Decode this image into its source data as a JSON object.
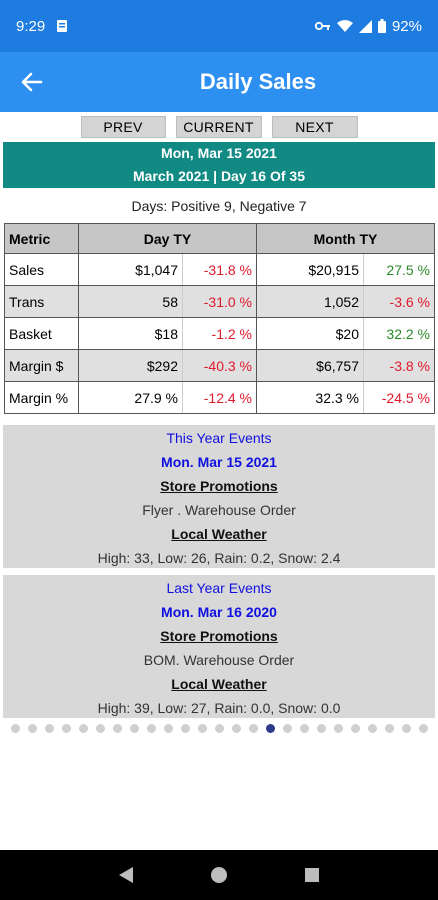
{
  "status": {
    "time": "9:29",
    "battery": "92%"
  },
  "appbar": {
    "title": "Daily Sales"
  },
  "nav_buttons": {
    "prev": "PREV",
    "current": "CURRENT",
    "next": "NEXT"
  },
  "date_header": {
    "date": "Mon, Mar 15 2021",
    "period": "March 2021 | Day 16 Of 35"
  },
  "days_summary": "Days: Positive 9, Negative 7",
  "table": {
    "headers": {
      "metric": "Metric",
      "day": "Day TY",
      "month": "Month TY"
    },
    "rows": [
      {
        "metric": "Sales",
        "day_value": "$1,047",
        "day_pct": "-31.8 %",
        "month_value": "$20,915",
        "month_pct": "27.5 %"
      },
      {
        "metric": "Trans",
        "day_value": "58",
        "day_pct": "-31.0 %",
        "month_value": "1,052",
        "month_pct": "-3.6 %"
      },
      {
        "metric": "Basket",
        "day_value": "$18",
        "day_pct": "-1.2 %",
        "month_value": "$20",
        "month_pct": "32.2 %"
      },
      {
        "metric": "Margin $",
        "day_value": "$292",
        "day_pct": "-40.3 %",
        "month_value": "$6,757",
        "month_pct": "-3.8 %"
      },
      {
        "metric": "Margin %",
        "day_value": "27.9 %",
        "day_pct": "-12.4 %",
        "month_value": "32.3 %",
        "month_pct": "-24.5 %"
      }
    ]
  },
  "this_year": {
    "title": "This Year Events",
    "date": "Mon. Mar 15 2021",
    "promotions_label": "Store Promotions",
    "promotions": "Flyer . Warehouse Order",
    "weather_label": "Local Weather",
    "weather": "High: 33, Low: 26, Rain: 0.2, Snow: 2.4"
  },
  "last_year": {
    "title": "Last Year Events",
    "date": "Mon. Mar 16 2020",
    "promotions_label": "Store Promotions",
    "promotions": "BOM. Warehouse Order",
    "weather_label": "Local Weather",
    "weather": "High: 39, Low: 27, Rain: 0.0, Snow: 0.0"
  },
  "pager": {
    "count": 25,
    "active": 15
  },
  "colors": {
    "status_bar": "#1e7be0",
    "app_bar": "#2d8ff0",
    "date_header": "#118a84",
    "negative": "#e0192b",
    "positive": "#2a8a2a",
    "event_title": "#1010e0"
  },
  "icons": {
    "back": "arrow-left-icon",
    "wifi": "wifi-icon",
    "signal": "signal-icon",
    "battery": "battery-icon"
  }
}
